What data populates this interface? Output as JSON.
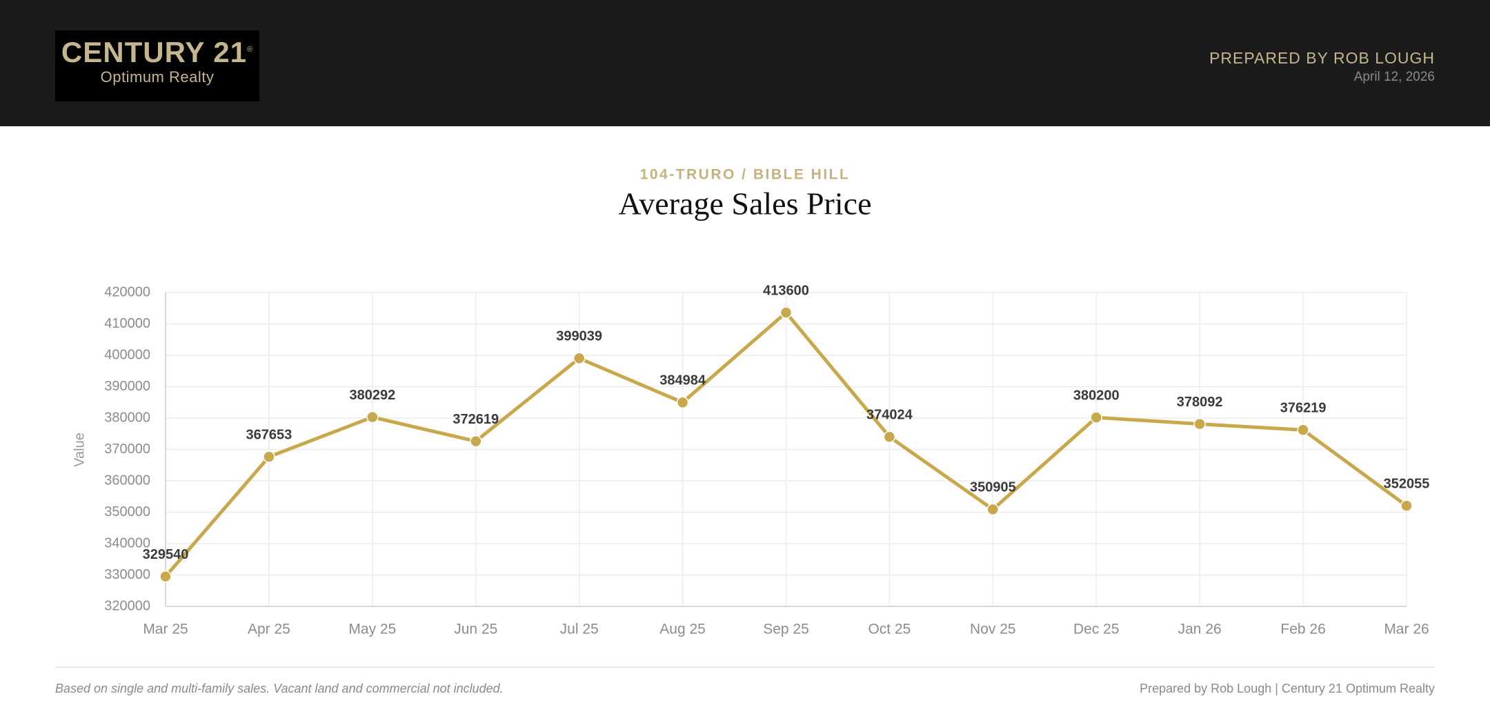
{
  "header": {
    "logo": {
      "brand": "CENTURY 21",
      "mark": "®",
      "tagline": "Optimum Realty"
    },
    "prepared_by": "PREPARED BY ROB LOUGH",
    "date": "April 12, 2026"
  },
  "chart_data": {
    "type": "line",
    "subtitle": "104-TRURO / BIBLE HILL",
    "title": "Average Sales Price",
    "y_label": "Value",
    "categories": [
      "Mar 25",
      "Apr 25",
      "May 25",
      "Jun 25",
      "Jul 25",
      "Aug 25",
      "Sep 25",
      "Oct 25",
      "Nov 25",
      "Dec 25",
      "Jan 26",
      "Feb 26",
      "Mar 26"
    ],
    "values": [
      329540,
      367653,
      380292,
      372619,
      399039,
      384984,
      413600,
      374024,
      350905,
      380200,
      378092,
      376219,
      352055
    ],
    "color": "#c9a84c",
    "ylim": [
      320000,
      420000
    ],
    "yticks": [
      320000,
      330000,
      340000,
      350000,
      360000,
      370000,
      380000,
      390000,
      400000,
      410000,
      420000
    ],
    "grid": true
  },
  "footer": {
    "note": "Based on single and multi-family sales. Vacant land and commercial not included.",
    "credit": "Prepared by Rob Lough | Century 21 Optimum Realty"
  }
}
